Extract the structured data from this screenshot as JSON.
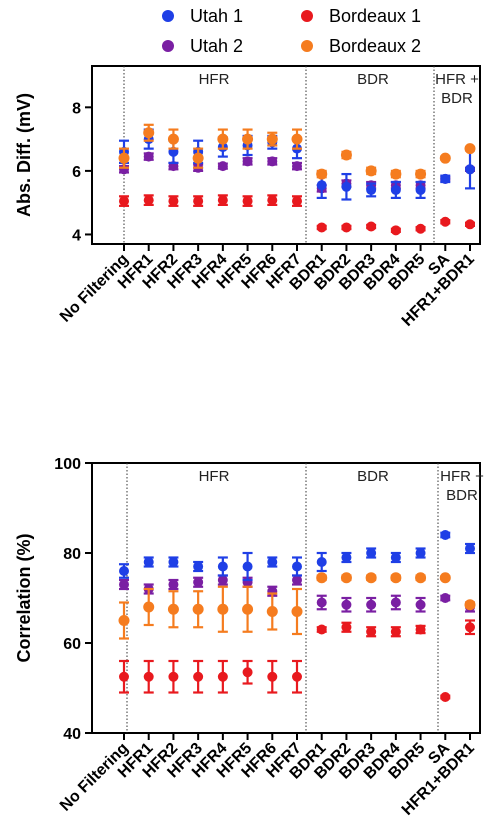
{
  "colors": {
    "Utah 1": "#1f3fe6",
    "Utah 2": "#7a1fa3",
    "Bordeaux 1": "#e8191e",
    "Bordeaux 2": "#f57c1f"
  },
  "legend": [
    {
      "name": "Utah 1"
    },
    {
      "name": "Bordeaux 1"
    },
    {
      "name": "Utah 2"
    },
    {
      "name": "Bordeaux 2"
    }
  ],
  "chart_data": [
    {
      "type": "scatter",
      "ylabel": "Abs. Diff. (mV)",
      "ylim": [
        3.7,
        9.3
      ],
      "yticks": [
        "4",
        "6",
        "8"
      ],
      "categories": [
        "No Filtering",
        "HFR1",
        "HFR2",
        "HFR3",
        "HFR4",
        "HFR5",
        "HFR6",
        "HFR7",
        "BDR1",
        "BDR2",
        "BDR3",
        "BDR4",
        "BDR5",
        "SA",
        "HFR1+BDR1"
      ],
      "sections": [
        {
          "label": "HFR"
        },
        {
          "label": "BDR"
        },
        {
          "label": "HFR +\nBDR"
        }
      ],
      "series": [
        {
          "name": "Utah 1",
          "values": [
            6.6,
            7.0,
            6.6,
            6.6,
            6.75,
            6.8,
            6.9,
            6.7,
            5.55,
            5.5,
            5.4,
            5.4,
            5.4,
            5.75,
            6.05
          ],
          "err": [
            0.35,
            0.3,
            0.35,
            0.35,
            0.3,
            0.3,
            0.2,
            0.3,
            0.4,
            0.4,
            0.2,
            0.25,
            0.25,
            0.1,
            0.6
          ]
        },
        {
          "name": "Utah 2",
          "values": [
            6.05,
            6.45,
            6.15,
            6.1,
            6.15,
            6.3,
            6.3,
            6.15,
            5.45,
            5.6,
            5.55,
            5.55,
            5.55,
            5.75,
            6.05
          ],
          "err": [
            0.1,
            0.1,
            0.1,
            0.1,
            0.08,
            0.1,
            0.1,
            0.1,
            0.1,
            0.1,
            0.1,
            0.1,
            0.1,
            0.05,
            0.05
          ]
        },
        {
          "name": "Bordeaux 1",
          "values": [
            5.05,
            5.08,
            5.05,
            5.05,
            5.08,
            5.05,
            5.08,
            5.05,
            4.22,
            4.22,
            4.25,
            4.13,
            4.18,
            4.4,
            4.32
          ],
          "err": [
            0.15,
            0.15,
            0.15,
            0.15,
            0.15,
            0.15,
            0.15,
            0.15,
            0.05,
            0.05,
            0.05,
            0.05,
            0.05,
            0.05,
            0.05
          ]
        },
        {
          "name": "Bordeaux 2",
          "values": [
            6.4,
            7.2,
            7.0,
            6.4,
            7.0,
            7.0,
            7.0,
            7.0,
            5.9,
            6.5,
            6.0,
            5.9,
            5.9,
            6.4,
            6.7
          ],
          "err": [
            0.3,
            0.25,
            0.3,
            0.3,
            0.3,
            0.3,
            0.2,
            0.3,
            0.1,
            0.1,
            0.1,
            0.1,
            0.1,
            0.05,
            0.05
          ]
        }
      ]
    },
    {
      "type": "scatter",
      "ylabel": "Correlation (%)",
      "ylim": [
        40,
        100
      ],
      "yticks": [
        "40",
        "60",
        "80",
        "100"
      ],
      "categories": [
        "No Filtering",
        "HFR1",
        "HFR2",
        "HFR3",
        "HFR4",
        "HFR5",
        "HFR6",
        "HFR7",
        "BDR1",
        "BDR2",
        "BDR3",
        "BDR4",
        "BDR5",
        "SA",
        "HFR1+BDR1"
      ],
      "sections": [
        {
          "label": "HFR"
        },
        {
          "label": "BDR"
        },
        {
          "label": "HFR +\nBDR"
        }
      ],
      "series": [
        {
          "name": "Utah 1",
          "values": [
            76,
            78,
            78,
            77,
            77,
            77,
            78,
            77,
            78,
            79,
            80,
            79,
            80,
            84,
            81
          ],
          "err": [
            1.5,
            1,
            1,
            1,
            2,
            3,
            1,
            2,
            2,
            1,
            1,
            1,
            1,
            0.5,
            1
          ]
        },
        {
          "name": "Utah 2",
          "values": [
            73,
            72,
            73,
            73.5,
            74,
            73.5,
            71.5,
            74,
            69,
            68.5,
            68.5,
            69,
            68.5,
            70,
            68
          ],
          "err": [
            1,
            1,
            1,
            1,
            1,
            1,
            1,
            1,
            1.5,
            1.5,
            1.5,
            1.5,
            1.5,
            0.5,
            1
          ]
        },
        {
          "name": "Bordeaux 1",
          "values": [
            52.5,
            52.5,
            52.5,
            52.5,
            52.5,
            53.5,
            52.5,
            52.5,
            63,
            63.5,
            62.5,
            62.5,
            63,
            48,
            63.5
          ],
          "err": [
            3.5,
            3.5,
            3.5,
            3.5,
            3.5,
            2.5,
            3.5,
            3.5,
            0.5,
            1,
            1,
            1,
            0.8,
            0.3,
            1.5
          ]
        },
        {
          "name": "Bordeaux 2",
          "values": [
            65,
            68,
            67.5,
            67.5,
            67.5,
            67.5,
            67,
            67,
            74.5,
            74.5,
            74.5,
            74.5,
            74.5,
            74.5,
            68.5
          ],
          "err": [
            4,
            4,
            4,
            4,
            5,
            5,
            4,
            5,
            0.5,
            0.5,
            0.5,
            0.5,
            0.5,
            0.3,
            0.5
          ]
        }
      ]
    }
  ]
}
